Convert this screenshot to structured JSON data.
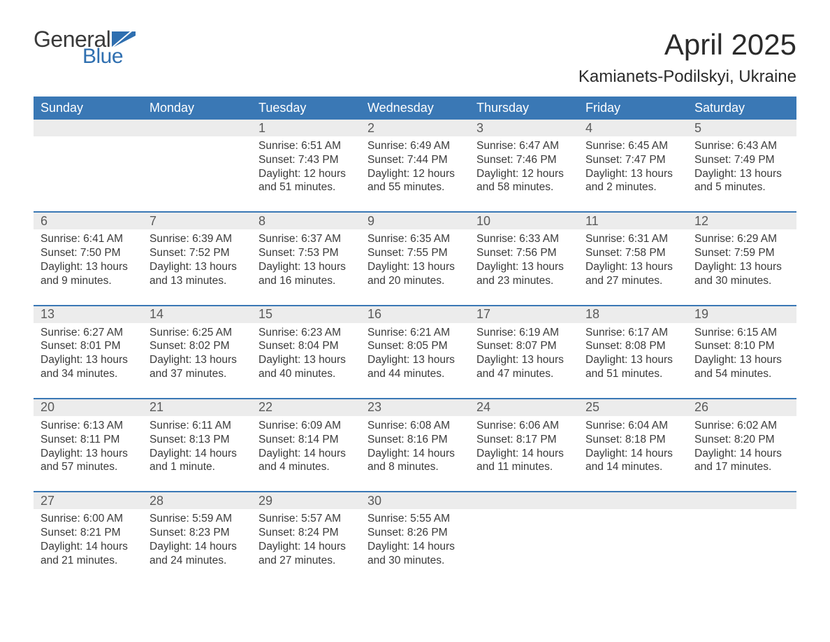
{
  "logo": {
    "general": "General",
    "blue": "Blue"
  },
  "title": "April 2025",
  "location": "Kamianets-Podilskyi, Ukraine",
  "colors": {
    "header_bg": "#3a78b5",
    "header_text": "#ffffff",
    "daynum_bg": "#ececec",
    "text": "#3a3a3a",
    "logo_blue": "#2f6fb0",
    "week_border": "#3a78b5"
  },
  "day_labels": [
    "Sunday",
    "Monday",
    "Tuesday",
    "Wednesday",
    "Thursday",
    "Friday",
    "Saturday"
  ],
  "weeks": [
    [
      {
        "n": "",
        "sunrise": "",
        "sunset": "",
        "day1": "",
        "day2": ""
      },
      {
        "n": "",
        "sunrise": "",
        "sunset": "",
        "day1": "",
        "day2": ""
      },
      {
        "n": "1",
        "sunrise": "Sunrise: 6:51 AM",
        "sunset": "Sunset: 7:43 PM",
        "day1": "Daylight: 12 hours",
        "day2": "and 51 minutes."
      },
      {
        "n": "2",
        "sunrise": "Sunrise: 6:49 AM",
        "sunset": "Sunset: 7:44 PM",
        "day1": "Daylight: 12 hours",
        "day2": "and 55 minutes."
      },
      {
        "n": "3",
        "sunrise": "Sunrise: 6:47 AM",
        "sunset": "Sunset: 7:46 PM",
        "day1": "Daylight: 12 hours",
        "day2": "and 58 minutes."
      },
      {
        "n": "4",
        "sunrise": "Sunrise: 6:45 AM",
        "sunset": "Sunset: 7:47 PM",
        "day1": "Daylight: 13 hours",
        "day2": "and 2 minutes."
      },
      {
        "n": "5",
        "sunrise": "Sunrise: 6:43 AM",
        "sunset": "Sunset: 7:49 PM",
        "day1": "Daylight: 13 hours",
        "day2": "and 5 minutes."
      }
    ],
    [
      {
        "n": "6",
        "sunrise": "Sunrise: 6:41 AM",
        "sunset": "Sunset: 7:50 PM",
        "day1": "Daylight: 13 hours",
        "day2": "and 9 minutes."
      },
      {
        "n": "7",
        "sunrise": "Sunrise: 6:39 AM",
        "sunset": "Sunset: 7:52 PM",
        "day1": "Daylight: 13 hours",
        "day2": "and 13 minutes."
      },
      {
        "n": "8",
        "sunrise": "Sunrise: 6:37 AM",
        "sunset": "Sunset: 7:53 PM",
        "day1": "Daylight: 13 hours",
        "day2": "and 16 minutes."
      },
      {
        "n": "9",
        "sunrise": "Sunrise: 6:35 AM",
        "sunset": "Sunset: 7:55 PM",
        "day1": "Daylight: 13 hours",
        "day2": "and 20 minutes."
      },
      {
        "n": "10",
        "sunrise": "Sunrise: 6:33 AM",
        "sunset": "Sunset: 7:56 PM",
        "day1": "Daylight: 13 hours",
        "day2": "and 23 minutes."
      },
      {
        "n": "11",
        "sunrise": "Sunrise: 6:31 AM",
        "sunset": "Sunset: 7:58 PM",
        "day1": "Daylight: 13 hours",
        "day2": "and 27 minutes."
      },
      {
        "n": "12",
        "sunrise": "Sunrise: 6:29 AM",
        "sunset": "Sunset: 7:59 PM",
        "day1": "Daylight: 13 hours",
        "day2": "and 30 minutes."
      }
    ],
    [
      {
        "n": "13",
        "sunrise": "Sunrise: 6:27 AM",
        "sunset": "Sunset: 8:01 PM",
        "day1": "Daylight: 13 hours",
        "day2": "and 34 minutes."
      },
      {
        "n": "14",
        "sunrise": "Sunrise: 6:25 AM",
        "sunset": "Sunset: 8:02 PM",
        "day1": "Daylight: 13 hours",
        "day2": "and 37 minutes."
      },
      {
        "n": "15",
        "sunrise": "Sunrise: 6:23 AM",
        "sunset": "Sunset: 8:04 PM",
        "day1": "Daylight: 13 hours",
        "day2": "and 40 minutes."
      },
      {
        "n": "16",
        "sunrise": "Sunrise: 6:21 AM",
        "sunset": "Sunset: 8:05 PM",
        "day1": "Daylight: 13 hours",
        "day2": "and 44 minutes."
      },
      {
        "n": "17",
        "sunrise": "Sunrise: 6:19 AM",
        "sunset": "Sunset: 8:07 PM",
        "day1": "Daylight: 13 hours",
        "day2": "and 47 minutes."
      },
      {
        "n": "18",
        "sunrise": "Sunrise: 6:17 AM",
        "sunset": "Sunset: 8:08 PM",
        "day1": "Daylight: 13 hours",
        "day2": "and 51 minutes."
      },
      {
        "n": "19",
        "sunrise": "Sunrise: 6:15 AM",
        "sunset": "Sunset: 8:10 PM",
        "day1": "Daylight: 13 hours",
        "day2": "and 54 minutes."
      }
    ],
    [
      {
        "n": "20",
        "sunrise": "Sunrise: 6:13 AM",
        "sunset": "Sunset: 8:11 PM",
        "day1": "Daylight: 13 hours",
        "day2": "and 57 minutes."
      },
      {
        "n": "21",
        "sunrise": "Sunrise: 6:11 AM",
        "sunset": "Sunset: 8:13 PM",
        "day1": "Daylight: 14 hours",
        "day2": "and 1 minute."
      },
      {
        "n": "22",
        "sunrise": "Sunrise: 6:09 AM",
        "sunset": "Sunset: 8:14 PM",
        "day1": "Daylight: 14 hours",
        "day2": "and 4 minutes."
      },
      {
        "n": "23",
        "sunrise": "Sunrise: 6:08 AM",
        "sunset": "Sunset: 8:16 PM",
        "day1": "Daylight: 14 hours",
        "day2": "and 8 minutes."
      },
      {
        "n": "24",
        "sunrise": "Sunrise: 6:06 AM",
        "sunset": "Sunset: 8:17 PM",
        "day1": "Daylight: 14 hours",
        "day2": "and 11 minutes."
      },
      {
        "n": "25",
        "sunrise": "Sunrise: 6:04 AM",
        "sunset": "Sunset: 8:18 PM",
        "day1": "Daylight: 14 hours",
        "day2": "and 14 minutes."
      },
      {
        "n": "26",
        "sunrise": "Sunrise: 6:02 AM",
        "sunset": "Sunset: 8:20 PM",
        "day1": "Daylight: 14 hours",
        "day2": "and 17 minutes."
      }
    ],
    [
      {
        "n": "27",
        "sunrise": "Sunrise: 6:00 AM",
        "sunset": "Sunset: 8:21 PM",
        "day1": "Daylight: 14 hours",
        "day2": "and 21 minutes."
      },
      {
        "n": "28",
        "sunrise": "Sunrise: 5:59 AM",
        "sunset": "Sunset: 8:23 PM",
        "day1": "Daylight: 14 hours",
        "day2": "and 24 minutes."
      },
      {
        "n": "29",
        "sunrise": "Sunrise: 5:57 AM",
        "sunset": "Sunset: 8:24 PM",
        "day1": "Daylight: 14 hours",
        "day2": "and 27 minutes."
      },
      {
        "n": "30",
        "sunrise": "Sunrise: 5:55 AM",
        "sunset": "Sunset: 8:26 PM",
        "day1": "Daylight: 14 hours",
        "day2": "and 30 minutes."
      },
      {
        "n": "",
        "sunrise": "",
        "sunset": "",
        "day1": "",
        "day2": ""
      },
      {
        "n": "",
        "sunrise": "",
        "sunset": "",
        "day1": "",
        "day2": ""
      },
      {
        "n": "",
        "sunrise": "",
        "sunset": "",
        "day1": "",
        "day2": ""
      }
    ]
  ]
}
